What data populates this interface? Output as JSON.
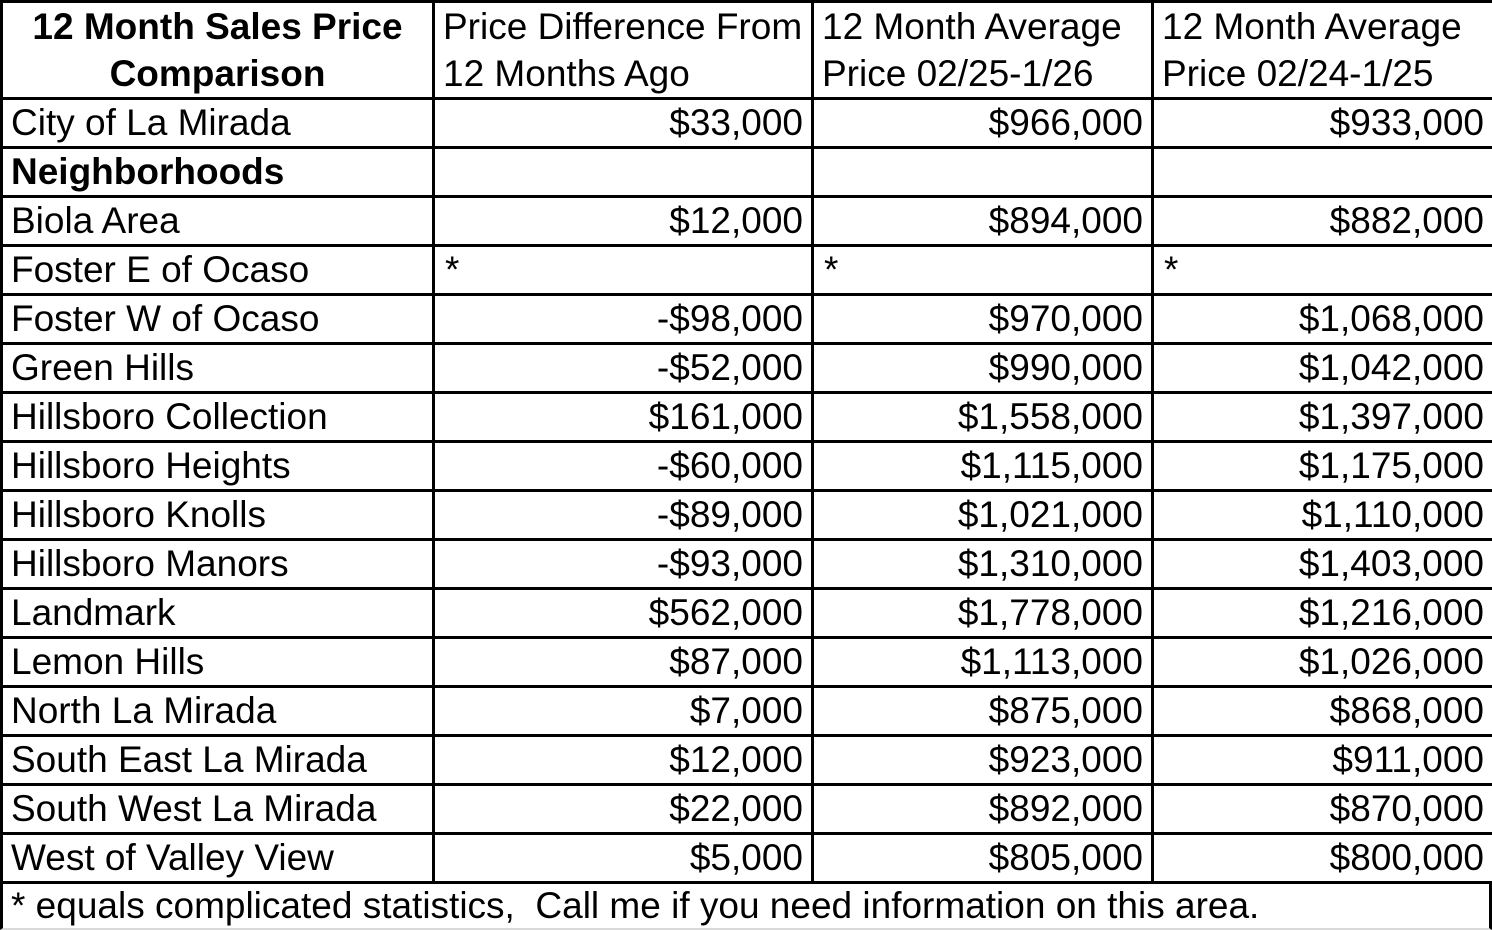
{
  "table": {
    "header": [
      {
        "line1": "12 Month Sales Price",
        "line2": "Comparison"
      },
      {
        "line1": "Price Difference From",
        "line2": "12 Months Ago"
      },
      {
        "line1": "12 Month Average",
        "line2": "Price 02/25-1/26"
      },
      {
        "line1": "12 Month Average",
        "line2": "Price 02/24-1/25"
      }
    ],
    "rows": [
      {
        "name": "City of La Mirada",
        "diff": "$33,000",
        "avg_current": "$966,000",
        "avg_prior": "$933,000",
        "bold": false
      },
      {
        "name": "Neighborhoods",
        "diff": "",
        "avg_current": "",
        "avg_prior": "",
        "bold": true
      },
      {
        "name": "Biola Area",
        "diff": "$12,000",
        "avg_current": "$894,000",
        "avg_prior": "$882,000",
        "bold": false
      },
      {
        "name": "Foster E of Ocaso",
        "diff": "*",
        "avg_current": "*",
        "avg_prior": "*",
        "bold": false
      },
      {
        "name": "Foster W of Ocaso",
        "diff": "-$98,000",
        "avg_current": "$970,000",
        "avg_prior": "$1,068,000",
        "bold": false
      },
      {
        "name": "Green Hills",
        "diff": "-$52,000",
        "avg_current": "$990,000",
        "avg_prior": "$1,042,000",
        "bold": false
      },
      {
        "name": "Hillsboro Collection",
        "diff": "$161,000",
        "avg_current": "$1,558,000",
        "avg_prior": "$1,397,000",
        "bold": false
      },
      {
        "name": "Hillsboro Heights",
        "diff": "-$60,000",
        "avg_current": "$1,115,000",
        "avg_prior": "$1,175,000",
        "bold": false
      },
      {
        "name": "Hillsboro Knolls",
        "diff": "-$89,000",
        "avg_current": "$1,021,000",
        "avg_prior": "$1,110,000",
        "bold": false
      },
      {
        "name": "Hillsboro Manors",
        "diff": "-$93,000",
        "avg_current": "$1,310,000",
        "avg_prior": "$1,403,000",
        "bold": false
      },
      {
        "name": "Landmark",
        "diff": "$562,000",
        "avg_current": "$1,778,000",
        "avg_prior": "$1,216,000",
        "bold": false
      },
      {
        "name": "Lemon Hills",
        "diff": "$87,000",
        "avg_current": "$1,113,000",
        "avg_prior": "$1,026,000",
        "bold": false
      },
      {
        "name": "North La Mirada",
        "diff": "$7,000",
        "avg_current": "$875,000",
        "avg_prior": "$868,000",
        "bold": false
      },
      {
        "name": "South East La Mirada",
        "diff": "$12,000",
        "avg_current": "$923,000",
        "avg_prior": "$911,000",
        "bold": false
      },
      {
        "name": "South West La Mirada",
        "diff": "$22,000",
        "avg_current": "$892,000",
        "avg_prior": "$870,000",
        "bold": false
      },
      {
        "name": "West of Valley View",
        "diff": "$5,000",
        "avg_current": "$805,000",
        "avg_prior": "$800,000",
        "bold": false
      }
    ]
  },
  "footnote": "* equals complicated statistics,  Call me if you need information on this area.",
  "colors": {
    "border": "#000000",
    "text": "#000000",
    "background": "#ffffff"
  }
}
